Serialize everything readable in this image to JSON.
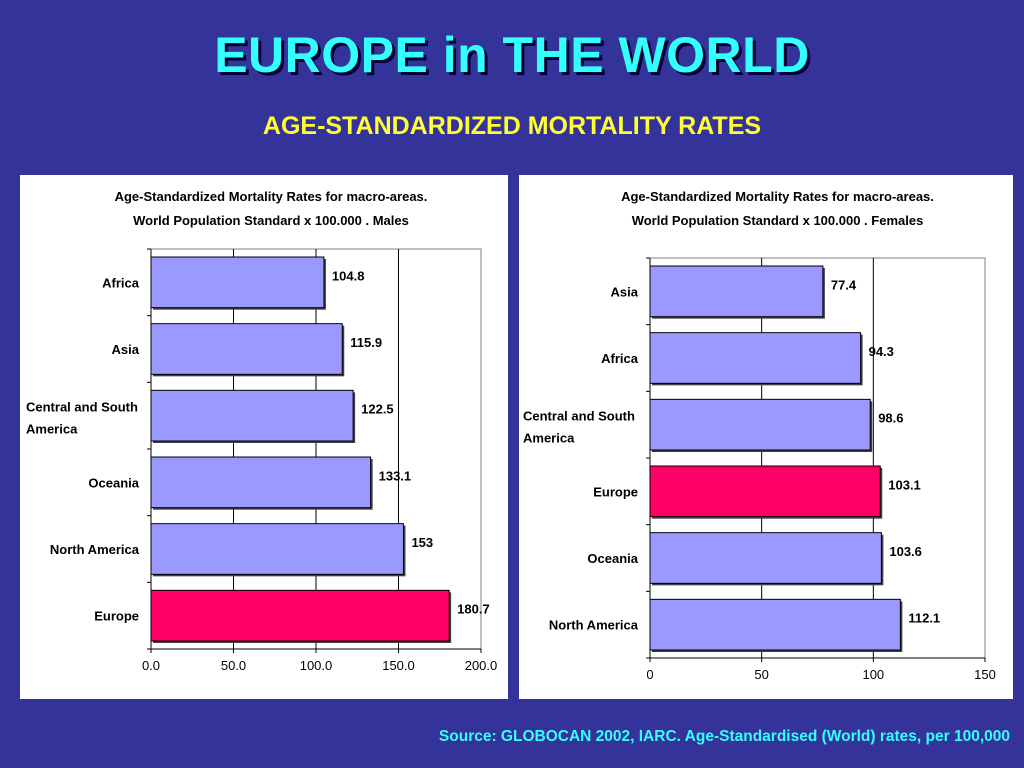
{
  "slide": {
    "title": "EUROPE in THE WORLD",
    "subtitle": "AGE-STANDARDIZED MORTALITY RATES",
    "source": "Source: GLOBOCAN 2002, IARC. Age-Standardised (World) rates, per 100,000"
  },
  "colors": {
    "background": "#333399",
    "title": "#33ffff",
    "subtitle": "#ffff33",
    "bar_default": "#9999ff",
    "bar_highlight": "#ff0066"
  },
  "chart_data": [
    {
      "type": "bar",
      "orientation": "horizontal",
      "title": "Age-Standardized Mortality Rates for macro-areas.",
      "subtitle": "World Population Standard x 100.000 . Males",
      "categories": [
        "Africa",
        "Asia",
        "Central and South America",
        "Oceania",
        "North America",
        "Europe"
      ],
      "category_lines": [
        [
          "Africa"
        ],
        [
          "Asia"
        ],
        [
          "Central and South",
          "America"
        ],
        [
          "Oceania"
        ],
        [
          "North America"
        ],
        [
          "Europe"
        ]
      ],
      "values": [
        104.8,
        115.9,
        122.5,
        133.1,
        153,
        180.7
      ],
      "value_labels": [
        "104.8",
        "115.9",
        "122.5",
        "133.1",
        "153",
        "180.7"
      ],
      "highlight": "Europe",
      "xlim": [
        0,
        200
      ],
      "xticks": [
        0,
        50,
        100,
        150,
        200
      ],
      "xtick_labels": [
        "0.0",
        "50.0",
        "100.0",
        "150.0",
        "200.0"
      ],
      "grid": true,
      "legend": false
    },
    {
      "type": "bar",
      "orientation": "horizontal",
      "title": "Age-Standardized Mortality Rates for macro-areas.",
      "subtitle": "World Population Standard x 100.000 . Females",
      "categories": [
        "Asia",
        "Africa",
        "Central and South America",
        "Europe",
        "Oceania",
        "North America"
      ],
      "category_lines": [
        [
          "Asia"
        ],
        [
          "Africa"
        ],
        [
          "Central and South",
          "America"
        ],
        [
          "Europe"
        ],
        [
          "Oceania"
        ],
        [
          "North America"
        ]
      ],
      "values": [
        77.4,
        94.3,
        98.6,
        103.1,
        103.6,
        112.1
      ],
      "value_labels": [
        "77.4",
        "94.3",
        "98.6",
        "103.1",
        "103.6",
        "112.1"
      ],
      "highlight": "Europe",
      "xlim": [
        0,
        150
      ],
      "xticks": [
        0,
        50,
        100,
        150
      ],
      "xtick_labels": [
        "0",
        "50",
        "100",
        "150"
      ],
      "grid": true,
      "legend": false
    }
  ]
}
